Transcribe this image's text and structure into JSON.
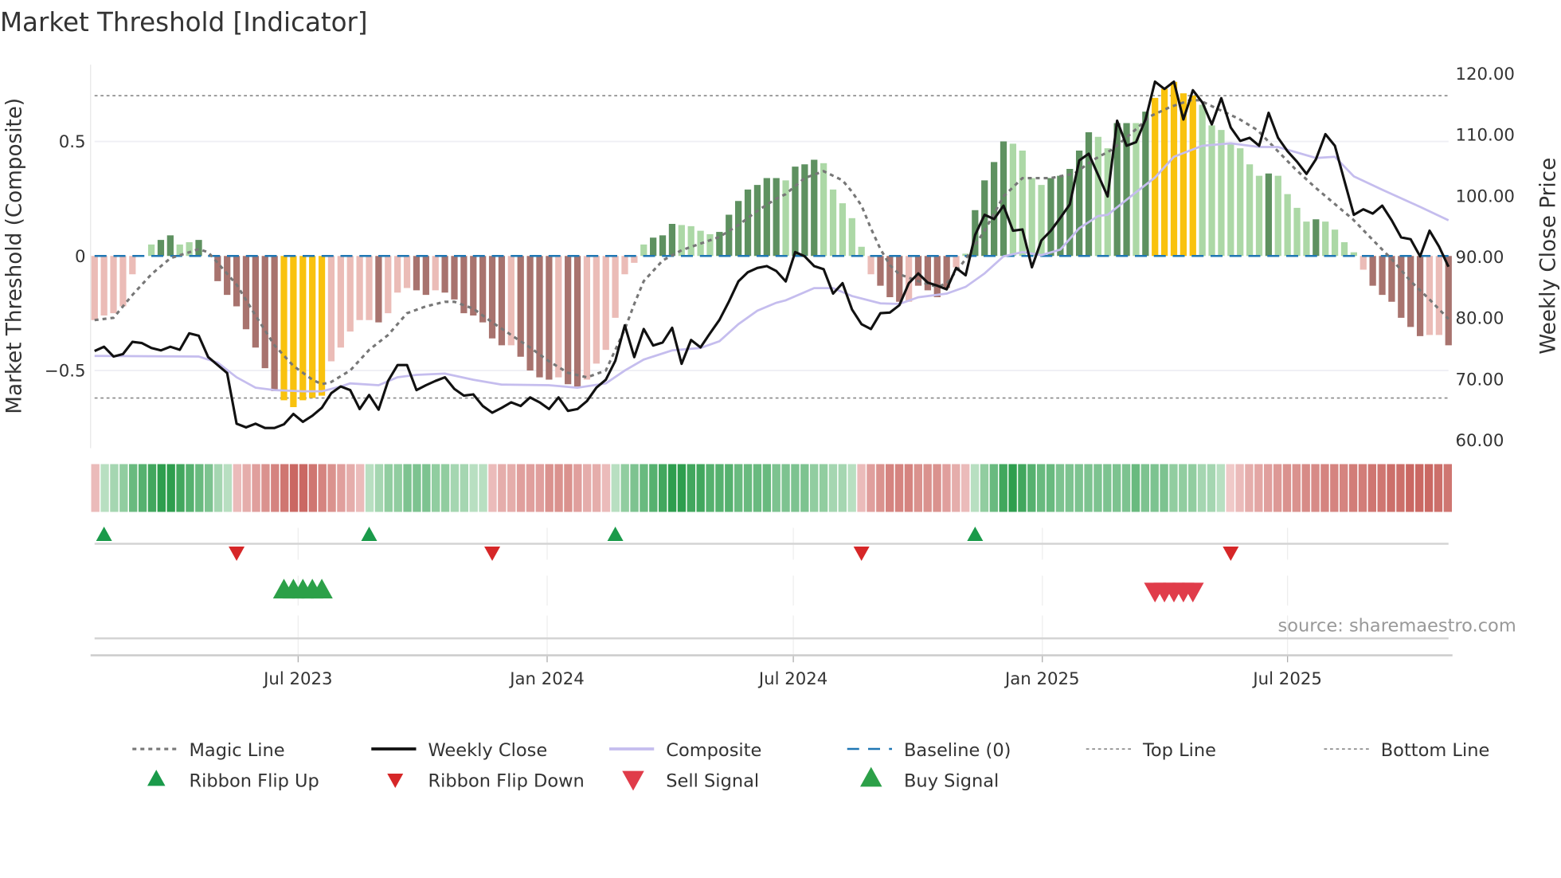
{
  "title": "Market Threshold [Indicator]",
  "source": "source: sharemaestro.com",
  "chart_data": {
    "type": "bar",
    "title": "Market Threshold [Indicator]",
    "ylabel_left": "Market Threshold (Composite)",
    "ylabel_right": "Weekly Close Price",
    "ylim_left": [
      -0.82,
      0.84
    ],
    "ylim_right": [
      60,
      122
    ],
    "left_ticks": [
      {
        "v": 0.5,
        "label": "0.5"
      },
      {
        "v": 0,
        "label": "0"
      },
      {
        "v": -0.5,
        "label": "−0.5"
      }
    ],
    "right_ticks": [
      {
        "v": 120,
        "label": "120.00"
      },
      {
        "v": 110,
        "label": "110.00"
      },
      {
        "v": 100,
        "label": "100.00"
      },
      {
        "v": 90,
        "label": "90.00"
      },
      {
        "v": 80,
        "label": "80.00"
      },
      {
        "v": 70,
        "label": "70.00"
      },
      {
        "v": 60,
        "label": "60.00"
      }
    ],
    "x_ticks": [
      {
        "week": 21.5,
        "label": "Jul 2023"
      },
      {
        "week": 47.8,
        "label": "Jan 2024"
      },
      {
        "week": 73.8,
        "label": "Jul 2024"
      },
      {
        "week": 100.1,
        "label": "Jan 2025"
      },
      {
        "week": 126,
        "label": "Jul 2025"
      }
    ],
    "top_line": 0.7,
    "bottom_line": -0.62,
    "baseline": 0,
    "colors": {
      "dr": "#a8736e",
      "lr": "#ebbcb7",
      "dg": "#5e9160",
      "lg": "#acd8a6",
      "y": "#f9c20e",
      "close": "#111111",
      "composite": "#c5bdee",
      "magic": "#777777",
      "baseline": "#1f77b4",
      "flip_up": "#1a9a4a",
      "flip_down": "#d62728",
      "sell": "#e03c4a",
      "buy": "#2ca048"
    },
    "composite_bars": [
      [
        -0.28,
        "lr"
      ],
      [
        -0.26,
        "lr"
      ],
      [
        -0.25,
        "lr"
      ],
      [
        -0.22,
        "lr"
      ],
      [
        -0.08,
        "lr"
      ],
      [
        0,
        "lr"
      ],
      [
        0.05,
        "lg"
      ],
      [
        0.07,
        "dg"
      ],
      [
        0.09,
        "dg"
      ],
      [
        0.05,
        "lg"
      ],
      [
        0.06,
        "lg"
      ],
      [
        0.07,
        "dg"
      ],
      [
        0,
        "dr"
      ],
      [
        -0.11,
        "dr"
      ],
      [
        -0.17,
        "dr"
      ],
      [
        -0.22,
        "dr"
      ],
      [
        -0.32,
        "dr"
      ],
      [
        -0.4,
        "dr"
      ],
      [
        -0.49,
        "dr"
      ],
      [
        -0.59,
        "dr"
      ],
      [
        -0.63,
        "y"
      ],
      [
        -0.66,
        "y"
      ],
      [
        -0.63,
        "y"
      ],
      [
        -0.62,
        "y"
      ],
      [
        -0.61,
        "y"
      ],
      [
        -0.46,
        "lr"
      ],
      [
        -0.4,
        "lr"
      ],
      [
        -0.33,
        "lr"
      ],
      [
        -0.28,
        "lr"
      ],
      [
        -0.28,
        "lr"
      ],
      [
        -0.29,
        "dr"
      ],
      [
        -0.25,
        "lr"
      ],
      [
        -0.16,
        "lr"
      ],
      [
        -0.14,
        "lr"
      ],
      [
        -0.15,
        "dr"
      ],
      [
        -0.17,
        "dr"
      ],
      [
        -0.15,
        "lr"
      ],
      [
        -0.16,
        "dr"
      ],
      [
        -0.19,
        "dr"
      ],
      [
        -0.25,
        "dr"
      ],
      [
        -0.26,
        "dr"
      ],
      [
        -0.29,
        "dr"
      ],
      [
        -0.36,
        "dr"
      ],
      [
        -0.39,
        "dr"
      ],
      [
        -0.39,
        "lr"
      ],
      [
        -0.44,
        "dr"
      ],
      [
        -0.5,
        "dr"
      ],
      [
        -0.53,
        "dr"
      ],
      [
        -0.54,
        "dr"
      ],
      [
        -0.53,
        "lr"
      ],
      [
        -0.56,
        "dr"
      ],
      [
        -0.57,
        "dr"
      ],
      [
        -0.54,
        "lr"
      ],
      [
        -0.47,
        "lr"
      ],
      [
        -0.41,
        "lr"
      ],
      [
        -0.27,
        "lr"
      ],
      [
        -0.08,
        "lr"
      ],
      [
        -0.03,
        "lr"
      ],
      [
        0.05,
        "lg"
      ],
      [
        0.08,
        "dg"
      ],
      [
        0.09,
        "dg"
      ],
      [
        0.14,
        "dg"
      ],
      [
        0.135,
        "lg"
      ],
      [
        0.13,
        "lg"
      ],
      [
        0.11,
        "lg"
      ],
      [
        0.095,
        "lg"
      ],
      [
        0.105,
        "dg"
      ],
      [
        0.18,
        "dg"
      ],
      [
        0.24,
        "dg"
      ],
      [
        0.29,
        "dg"
      ],
      [
        0.31,
        "dg"
      ],
      [
        0.34,
        "dg"
      ],
      [
        0.34,
        "dg"
      ],
      [
        0.33,
        "lg"
      ],
      [
        0.39,
        "dg"
      ],
      [
        0.4,
        "dg"
      ],
      [
        0.42,
        "dg"
      ],
      [
        0.405,
        "lg"
      ],
      [
        0.29,
        "lg"
      ],
      [
        0.23,
        "lg"
      ],
      [
        0.165,
        "lg"
      ],
      [
        0.04,
        "lg"
      ],
      [
        -0.08,
        "lr"
      ],
      [
        -0.13,
        "dr"
      ],
      [
        -0.18,
        "dr"
      ],
      [
        -0.2,
        "dr"
      ],
      [
        -0.2,
        "lr"
      ],
      [
        -0.13,
        "dr"
      ],
      [
        -0.15,
        "dr"
      ],
      [
        -0.18,
        "dr"
      ],
      [
        -0.14,
        "dr"
      ],
      [
        -0.05,
        "lr"
      ],
      [
        0.01,
        "lg"
      ],
      [
        0.2,
        "dg"
      ],
      [
        0.33,
        "dg"
      ],
      [
        0.41,
        "dg"
      ],
      [
        0.5,
        "dg"
      ],
      [
        0.49,
        "lg"
      ],
      [
        0.46,
        "lg"
      ],
      [
        0.34,
        "lg"
      ],
      [
        0.31,
        "lg"
      ],
      [
        0.34,
        "dg"
      ],
      [
        0.35,
        "dg"
      ],
      [
        0.38,
        "dg"
      ],
      [
        0.46,
        "dg"
      ],
      [
        0.54,
        "dg"
      ],
      [
        0.52,
        "lg"
      ],
      [
        0.47,
        "lg"
      ],
      [
        0.58,
        "dg"
      ],
      [
        0.58,
        "dg"
      ],
      [
        0.58,
        "lg"
      ],
      [
        0.63,
        "dg"
      ],
      [
        0.69,
        "y"
      ],
      [
        0.73,
        "y"
      ],
      [
        0.76,
        "y"
      ],
      [
        0.71,
        "y"
      ],
      [
        0.7,
        "y"
      ],
      [
        0.66,
        "lg"
      ],
      [
        0.57,
        "lg"
      ],
      [
        0.55,
        "lg"
      ],
      [
        0.49,
        "lg"
      ],
      [
        0.47,
        "lg"
      ],
      [
        0.4,
        "lg"
      ],
      [
        0.35,
        "lg"
      ],
      [
        0.36,
        "dg"
      ],
      [
        0.35,
        "lg"
      ],
      [
        0.27,
        "lg"
      ],
      [
        0.21,
        "lg"
      ],
      [
        0.15,
        "lg"
      ],
      [
        0.16,
        "dg"
      ],
      [
        0.15,
        "lg"
      ],
      [
        0.115,
        "lg"
      ],
      [
        0.06,
        "lg"
      ],
      [
        0.016,
        "lg"
      ],
      [
        -0.06,
        "lr"
      ],
      [
        -0.13,
        "dr"
      ],
      [
        -0.17,
        "dr"
      ],
      [
        -0.2,
        "dr"
      ],
      [
        -0.27,
        "dr"
      ],
      [
        -0.31,
        "dr"
      ],
      [
        -0.35,
        "dr"
      ],
      [
        -0.345,
        "lr"
      ],
      [
        -0.345,
        "lr"
      ],
      [
        -0.39,
        "dr"
      ]
    ],
    "weekly_close": [
      74.6,
      75.3,
      73.7,
      74.1,
      76.1,
      75.9,
      75.1,
      74.7,
      75.3,
      74.8,
      77.5,
      77.1,
      73.6,
      72.3,
      71.0,
      62.7,
      62.1,
      62.7,
      62.0,
      62.0,
      62.6,
      64.3,
      63.0,
      64.0,
      65.3,
      67.7,
      68.8,
      68.2,
      65.1,
      67.4,
      65.0,
      69.7,
      72.3,
      72.3,
      68.2,
      69.0,
      69.7,
      70.3,
      68.4,
      67.3,
      67.5,
      65.6,
      64.5,
      65.3,
      66.2,
      65.6,
      67.0,
      66.2,
      65.1,
      67.0,
      64.8,
      65.1,
      66.4,
      68.6,
      69.9,
      73.0,
      78.8,
      73.6,
      78.2,
      75.5,
      76.0,
      78.4,
      72.5,
      76.4,
      75.2,
      77.5,
      79.7,
      82.7,
      86.0,
      87.5,
      88.2,
      88.5,
      87.7,
      86.0,
      90.8,
      90.1,
      88.5,
      88.0,
      84.0,
      85.7,
      81.4,
      79.0,
      78.2,
      80.8,
      80.9,
      82.1,
      85.7,
      87.3,
      85.8,
      85.3,
      84.7,
      88.2,
      87.0,
      93.6,
      96.9,
      96.2,
      98.4,
      94.3,
      94.5,
      88.3,
      92.7,
      94.3,
      96.4,
      98.6,
      105.8,
      106.9,
      103.4,
      99.9,
      112.3,
      108.2,
      108.8,
      112.5,
      118.7,
      117.5,
      118.7,
      112.5,
      117.3,
      115.3,
      111.7,
      116.0,
      111.2,
      109.0,
      109.5,
      108.2,
      113.6,
      109.5,
      107.3,
      105.6,
      103.6,
      106.0,
      110.1,
      108.2,
      102.5,
      96.9,
      97.8,
      97.1,
      98.4,
      96.0,
      93.2,
      92.9,
      90.1,
      94.3,
      91.7,
      88.4
    ],
    "composite_line": [
      [
        0,
        73.8
      ],
      [
        11,
        73.7
      ],
      [
        13,
        72.7
      ],
      [
        15,
        70.3
      ],
      [
        17,
        68.6
      ],
      [
        19,
        68.2
      ],
      [
        22,
        68.0
      ],
      [
        24,
        68.0
      ],
      [
        26,
        68.8
      ],
      [
        27,
        69.3
      ],
      [
        30,
        69.0
      ],
      [
        32,
        70.3
      ],
      [
        34,
        70.7
      ],
      [
        37,
        70.9
      ],
      [
        40,
        69.9
      ],
      [
        43,
        69.1
      ],
      [
        48,
        69.0
      ],
      [
        51,
        68.6
      ],
      [
        54,
        69.3
      ],
      [
        56,
        71.4
      ],
      [
        58,
        73.2
      ],
      [
        61,
        74.7
      ],
      [
        64,
        75.1
      ],
      [
        66,
        76.2
      ],
      [
        68,
        79.0
      ],
      [
        70,
        81.2
      ],
      [
        72,
        82.5
      ],
      [
        73,
        82.9
      ],
      [
        76,
        84.9
      ],
      [
        78,
        84.9
      ],
      [
        80,
        83.6
      ],
      [
        83,
        82.4
      ],
      [
        85,
        82.3
      ],
      [
        87,
        83.4
      ],
      [
        90,
        84.0
      ],
      [
        92,
        85.1
      ],
      [
        94,
        87.3
      ],
      [
        96,
        90.1
      ],
      [
        98,
        90.8
      ],
      [
        100,
        90.3
      ],
      [
        102,
        91.2
      ],
      [
        104,
        94.7
      ],
      [
        106,
        96.7
      ],
      [
        107,
        96.9
      ],
      [
        110,
        100.6
      ],
      [
        112,
        103.0
      ],
      [
        114,
        106.4
      ],
      [
        117,
        108.2
      ],
      [
        120,
        108.6
      ],
      [
        123,
        108.0
      ],
      [
        125,
        108.0
      ],
      [
        129,
        106.2
      ],
      [
        131,
        106.4
      ],
      [
        133,
        103.2
      ],
      [
        136,
        101.0
      ],
      [
        140,
        98.2
      ],
      [
        143,
        96.0
      ]
    ],
    "magic_line": [
      [
        0,
        -0.28
      ],
      [
        2,
        -0.27
      ],
      [
        4,
        -0.17
      ],
      [
        6,
        -0.08
      ],
      [
        8,
        -0.01
      ],
      [
        10,
        0.016
      ],
      [
        11,
        0.03
      ],
      [
        12,
        0.016
      ],
      [
        13,
        -0.03
      ],
      [
        15,
        -0.125
      ],
      [
        17,
        -0.26
      ],
      [
        19,
        -0.39
      ],
      [
        21,
        -0.48
      ],
      [
        23,
        -0.54
      ],
      [
        24,
        -0.56
      ],
      [
        25,
        -0.55
      ],
      [
        27,
        -0.5
      ],
      [
        29,
        -0.41
      ],
      [
        31,
        -0.345
      ],
      [
        33,
        -0.25
      ],
      [
        35,
        -0.22
      ],
      [
        37,
        -0.2
      ],
      [
        38,
        -0.2
      ],
      [
        40,
        -0.23
      ],
      [
        42,
        -0.29
      ],
      [
        44,
        -0.345
      ],
      [
        46,
        -0.4
      ],
      [
        48,
        -0.46
      ],
      [
        50,
        -0.51
      ],
      [
        52,
        -0.53
      ],
      [
        54,
        -0.5
      ],
      [
        55,
        -0.41
      ],
      [
        56,
        -0.32
      ],
      [
        57,
        -0.21
      ],
      [
        58,
        -0.11
      ],
      [
        60,
        -0.02
      ],
      [
        62,
        0.025
      ],
      [
        64,
        0.054
      ],
      [
        66,
        0.083
      ],
      [
        68,
        0.135
      ],
      [
        70,
        0.197
      ],
      [
        72,
        0.25
      ],
      [
        73,
        0.27
      ],
      [
        75,
        0.34
      ],
      [
        77,
        0.37
      ],
      [
        79,
        0.33
      ],
      [
        80,
        0.28
      ],
      [
        81,
        0.22
      ],
      [
        82,
        0.12
      ],
      [
        83,
        0.03
      ],
      [
        84,
        -0.04
      ],
      [
        85,
        -0.08
      ],
      [
        87,
        -0.11
      ],
      [
        89,
        -0.135
      ],
      [
        90,
        -0.12
      ],
      [
        92,
        -0.014
      ],
      [
        94,
        0.11
      ],
      [
        96,
        0.26
      ],
      [
        98,
        0.34
      ],
      [
        101,
        0.34
      ],
      [
        103.5,
        0.36
      ],
      [
        105.5,
        0.42
      ],
      [
        107.5,
        0.465
      ],
      [
        109.5,
        0.535
      ],
      [
        111.5,
        0.61
      ],
      [
        113.6,
        0.65
      ],
      [
        115.7,
        0.68
      ],
      [
        116.7,
        0.68
      ],
      [
        118.7,
        0.64
      ],
      [
        120.8,
        0.6
      ],
      [
        122.8,
        0.55
      ],
      [
        124.8,
        0.465
      ],
      [
        126.8,
        0.38
      ],
      [
        128.9,
        0.3
      ],
      [
        130.9,
        0.23
      ],
      [
        132.9,
        0.16
      ],
      [
        135,
        0.07
      ],
      [
        137,
        -0.014
      ],
      [
        139,
        -0.11
      ],
      [
        141,
        -0.19
      ],
      [
        143,
        -0.275
      ]
    ],
    "ribbon": [
      -0.2,
      0.2,
      0.3,
      0.4,
      0.6,
      0.7,
      0.8,
      0.9,
      0.9,
      0.8,
      0.7,
      0.6,
      0.5,
      0.3,
      0.2,
      -0.2,
      -0.3,
      -0.4,
      -0.5,
      -0.6,
      -0.7,
      -0.8,
      -0.8,
      -0.7,
      -0.6,
      -0.5,
      -0.4,
      -0.3,
      -0.2,
      0.2,
      0.3,
      0.4,
      0.4,
      0.5,
      0.5,
      0.5,
      0.4,
      0.4,
      0.3,
      0.3,
      0.2,
      0.2,
      -0.2,
      -0.3,
      -0.3,
      -0.4,
      -0.4,
      -0.4,
      -0.5,
      -0.5,
      -0.5,
      -0.4,
      -0.3,
      -0.3,
      -0.2,
      0.2,
      0.4,
      0.5,
      0.6,
      0.7,
      0.8,
      0.9,
      0.9,
      0.8,
      0.8,
      0.7,
      0.7,
      0.7,
      0.6,
      0.6,
      0.6,
      0.6,
      0.5,
      0.5,
      0.5,
      0.5,
      0.4,
      0.4,
      0.3,
      0.3,
      0.2,
      -0.2,
      -0.4,
      -0.5,
      -0.6,
      -0.6,
      -0.6,
      -0.5,
      -0.5,
      -0.5,
      -0.4,
      -0.3,
      -0.2,
      0.2,
      0.4,
      0.6,
      0.8,
      0.9,
      0.8,
      0.7,
      0.6,
      0.6,
      0.5,
      0.5,
      0.5,
      0.5,
      0.5,
      0.5,
      0.5,
      0.5,
      0.6,
      0.5,
      0.5,
      0.5,
      0.4,
      0.4,
      0.4,
      0.3,
      0.3,
      0.2,
      -0.1,
      -0.2,
      -0.3,
      -0.35,
      -0.4,
      -0.45,
      -0.5,
      -0.5,
      -0.55,
      -0.55,
      -0.6,
      -0.6,
      -0.6,
      -0.65,
      -0.65,
      -0.7,
      -0.7,
      -0.75,
      -0.75,
      -0.8,
      -0.8,
      -0.8,
      -0.75,
      -0.7
    ],
    "ribbon_flip_up": [
      1,
      29,
      55,
      93
    ],
    "ribbon_flip_down": [
      15,
      42,
      81,
      120
    ],
    "buy_signals": [
      20,
      21,
      22,
      23,
      24
    ],
    "sell_signals": [
      112,
      113,
      114,
      115,
      116
    ],
    "legend": [
      {
        "label": "Magic Line",
        "marker": "dotted"
      },
      {
        "label": "Weekly Close",
        "marker": "solid"
      },
      {
        "label": "Composite",
        "marker": "lavender"
      },
      {
        "label": "Baseline (0)",
        "marker": "dashed"
      },
      {
        "label": "Top Line",
        "marker": "dotted-thin"
      },
      {
        "label": "Bottom Line",
        "marker": "dotted-thin"
      },
      {
        "label": "Ribbon Flip Up",
        "marker": "tri-up-small"
      },
      {
        "label": "Ribbon Flip Down",
        "marker": "tri-down-small"
      },
      {
        "label": "Sell Signal",
        "marker": "tri-down"
      },
      {
        "label": "Buy Signal",
        "marker": "tri-up"
      }
    ]
  }
}
